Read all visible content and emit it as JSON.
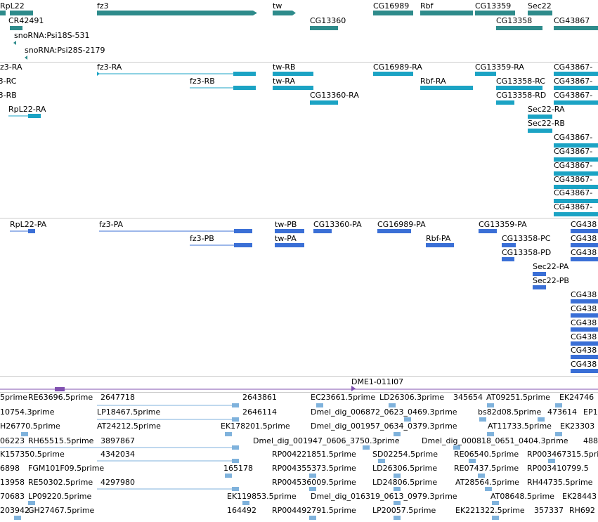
{
  "colors": {
    "gene": "#2e8b8b",
    "transcript": "#1ba3c4",
    "protein": "#3a6fd6",
    "clone": "#7fb2dc",
    "contig": "#8050b0",
    "separator": "#cccccc"
  },
  "gene_track": {
    "labels": [
      "RpL22",
      "fz3",
      "tw",
      "CG16989",
      "Rbf",
      "CG13359",
      "Sec22",
      "CR42491",
      "CG13360",
      "CG13358",
      "CG43867",
      "snoRNA:Psi18S-531",
      "snoRNA:Psi28S-2179"
    ]
  },
  "transcript_track": {
    "labels": [
      "fz3-RA",
      "tw-RB",
      "CG16989-RA",
      "CG13359-RA",
      "CG43867-",
      "fz3-RC",
      "fz3-RB",
      "tw-RA",
      "Rbf-RA",
      "CG13358-RC",
      "CG43867-",
      "fz3-RB",
      "CG13360-RA",
      "CG13358-RD",
      "CG43867-",
      "RpL22-RA",
      "Sec22-RA",
      "Sec22-RB",
      "CG43867-",
      "CG43867-",
      "CG43867-",
      "CG43867-",
      "CG43867-",
      "CG43867-"
    ]
  },
  "protein_track": {
    "labels": [
      "RpL22-PA",
      "fz3-PA",
      "tw-PB",
      "CG13360-PA",
      "CG16989-PA",
      "CG13359-PA",
      "CG438",
      "fz3-PB",
      "tw-PA",
      "Rbf-PA",
      "CG13358-PC",
      "CG438",
      "CG13358-PD",
      "CG438",
      "Sec22-PA",
      "Sec22-PB",
      "CG438",
      "CG438",
      "CG438",
      "CG438",
      "CG438",
      "CG438"
    ]
  },
  "contig_track": {
    "labels": [
      "DME1-011I07"
    ]
  },
  "clone_track": {
    "rows": [
      [
        "5prime",
        "RE63696.5prime",
        "2647718",
        "2643861",
        "EC23661.5prime",
        "LD26306.3prime",
        "345654",
        "AT09251.5prime",
        "EK24746"
      ],
      [
        "10754.3prime",
        "LP18467.5prime",
        "2646114",
        "Dmel_dig_006872_0623_0469.3prime",
        "bs82d08.5prime",
        "473614",
        "EP1"
      ],
      [
        "H26770.5prime",
        "AT24212.5prime",
        "EK178201.5prime",
        "Dmel_dig_001957_0634_0379.3prime",
        "AT11733.5prime",
        "EK23303"
      ],
      [
        "06223",
        "RH65515.5prime",
        "3897867",
        "Dmel_dig_001947_0606_3750.3prime",
        "Dmel_dig_000818_0651_0404.3prime",
        "488"
      ],
      [
        "K157350.5prime",
        "4342034",
        "RP004221851.5prime",
        "SD02254.5prime",
        "RE06540.5prime",
        "RP003467315.5pri"
      ],
      [
        "6898",
        "FGM101F09.5prime",
        "165178",
        "RP004355373.5prime",
        "LD26306.5prime",
        "RE07437.5prime",
        "RP003410799.5"
      ],
      [
        "13958",
        "RE50302.5prime",
        "4297980",
        "RP004536009.5prime",
        "LD24806.5prime",
        "AT28564.5prime",
        "RH44735.5prime"
      ],
      [
        "70683",
        "LP09220.5prime",
        "EK119853.5prime",
        "Dmel_dig_016319_0613_0979.3prime",
        "AT08648.5prime",
        "EK28443"
      ],
      [
        "203942",
        "GH27467.5prime",
        "164492",
        "RP004492791.5prime",
        "LP20057.5prime",
        "EK221322.5prime",
        "357337",
        "RH692"
      ]
    ]
  }
}
